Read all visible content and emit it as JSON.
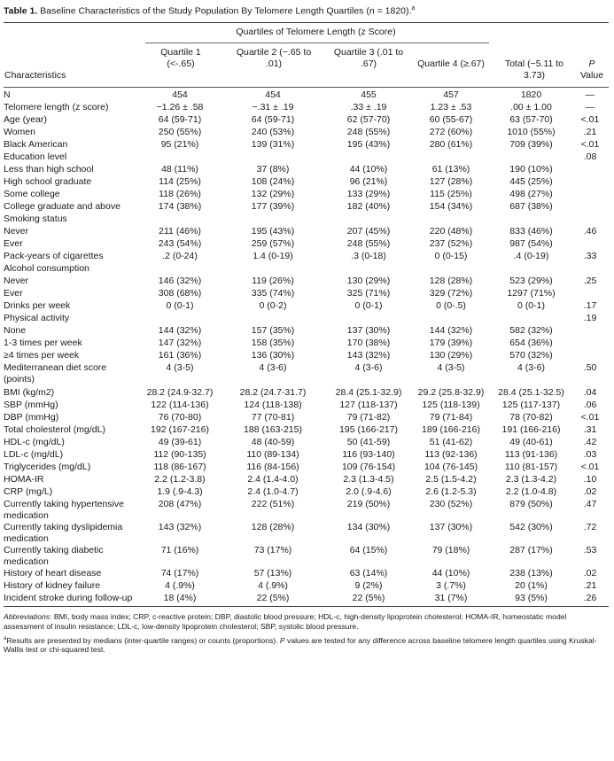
{
  "title": {
    "label": "Table 1.",
    "text": "Baseline Characteristics of the Study Population By Telomere Length Quartiles (n = 1820).",
    "mark": "a"
  },
  "header": {
    "span_title": "Quartiles of Telomere Length (z Score)",
    "characteristics": "Characteristics",
    "q1": [
      "Quartile 1",
      "(<-.65)"
    ],
    "q2": [
      "Quartile 2 (−.65 to",
      ".01)"
    ],
    "q3": [
      "Quartile 3 (.01 to",
      ".67)"
    ],
    "q4": "Quartile 4 (≥.67)",
    "total": [
      "Total (−5.11 to",
      "3.73)"
    ],
    "p": [
      "P",
      "Value"
    ]
  },
  "rows": [
    {
      "label": "N",
      "indent": false,
      "q1": "454",
      "q2": "454",
      "q3": "455",
      "q4": "457",
      "total": "1820",
      "p": "—"
    },
    {
      "label": "Telomere length (z score)",
      "indent": false,
      "q1": "−1.26 ± .58",
      "q2": "−.31 ± .19",
      "q3": ".33 ± .19",
      "q4": "1.23 ± .53",
      "total": ".00 ± 1.00",
      "p": "—"
    },
    {
      "label": "Age (year)",
      "indent": false,
      "q1": "64 (59-71)",
      "q2": "64 (59-71)",
      "q3": "62 (57-70)",
      "q4": "60 (55-67)",
      "total": "63 (57-70)",
      "p": "<.01"
    },
    {
      "label": "Women",
      "indent": false,
      "q1": "250 (55%)",
      "q2": "240 (53%)",
      "q3": "248 (55%)",
      "q4": "272 (60%)",
      "total": "1010 (55%)",
      "p": ".21"
    },
    {
      "label": "Black American",
      "indent": false,
      "q1": "95 (21%)",
      "q2": "139 (31%)",
      "q3": "195 (43%)",
      "q4": "280 (61%)",
      "total": "709 (39%)",
      "p": "<.01"
    },
    {
      "label": "Education level",
      "indent": false,
      "q1": "",
      "q2": "",
      "q3": "",
      "q4": "",
      "total": "",
      "p": ".08"
    },
    {
      "label": "Less than high school",
      "indent": true,
      "q1": "48 (11%)",
      "q2": "37 (8%)",
      "q3": "44 (10%)",
      "q4": "61 (13%)",
      "total": "190 (10%)",
      "p": ""
    },
    {
      "label": "High school graduate",
      "indent": true,
      "q1": "114 (25%)",
      "q2": "108 (24%)",
      "q3": "96 (21%)",
      "q4": "127 (28%)",
      "total": "445 (25%)",
      "p": ""
    },
    {
      "label": "Some college",
      "indent": true,
      "q1": "118 (26%)",
      "q2": "132 (29%)",
      "q3": "133 (29%)",
      "q4": "115 (25%)",
      "total": "498 (27%)",
      "p": ""
    },
    {
      "label": "College graduate and above",
      "indent": true,
      "q1": "174 (38%)",
      "q2": "177 (39%)",
      "q3": "182 (40%)",
      "q4": "154 (34%)",
      "total": "687 (38%)",
      "p": ""
    },
    {
      "label": "Smoking status",
      "indent": false,
      "q1": "",
      "q2": "",
      "q3": "",
      "q4": "",
      "total": "",
      "p": ""
    },
    {
      "label": "Never",
      "indent": true,
      "q1": "211 (46%)",
      "q2": "195 (43%)",
      "q3": "207 (45%)",
      "q4": "220 (48%)",
      "total": "833 (46%)",
      "p": ".46"
    },
    {
      "label": "Ever",
      "indent": true,
      "q1": "243 (54%)",
      "q2": "259 (57%)",
      "q3": "248 (55%)",
      "q4": "237 (52%)",
      "total": "987 (54%)",
      "p": ""
    },
    {
      "label": "Pack-years of cigarettes",
      "indent": true,
      "q1": ".2 (0-24)",
      "q2": "1.4 (0-19)",
      "q3": ".3 (0-18)",
      "q4": "0 (0-15)",
      "total": ".4 (0-19)",
      "p": ".33"
    },
    {
      "label": "Alcohol consumption",
      "indent": false,
      "q1": "",
      "q2": "",
      "q3": "",
      "q4": "",
      "total": "",
      "p": ""
    },
    {
      "label": "Never",
      "indent": true,
      "q1": "146 (32%)",
      "q2": "119 (26%)",
      "q3": "130 (29%)",
      "q4": "128 (28%)",
      "total": "523 (29%)",
      "p": ".25"
    },
    {
      "label": "Ever",
      "indent": true,
      "q1": "308 (68%)",
      "q2": "335 (74%)",
      "q3": "325 (71%)",
      "q4": "329 (72%)",
      "total": "1297 (71%)",
      "p": ""
    },
    {
      "label": "Drinks per week",
      "indent": true,
      "q1": "0 (0-1)",
      "q2": "0 (0-2)",
      "q3": "0 (0-1)",
      "q4": "0 (0-.5)",
      "total": "0 (0-1)",
      "p": ".17"
    },
    {
      "label": "Physical activity",
      "indent": false,
      "q1": "",
      "q2": "",
      "q3": "",
      "q4": "",
      "total": "",
      "p": ".19"
    },
    {
      "label": "None",
      "indent": true,
      "q1": "144 (32%)",
      "q2": "157 (35%)",
      "q3": "137 (30%)",
      "q4": "144 (32%)",
      "total": "582 (32%)",
      "p": ""
    },
    {
      "label": "1-3 times per week",
      "indent": true,
      "q1": "147 (32%)",
      "q2": "158 (35%)",
      "q3": "170 (38%)",
      "q4": "179 (39%)",
      "total": "654 (36%)",
      "p": ""
    },
    {
      "label": "≥4 times per week",
      "indent": true,
      "q1": "161 (36%)",
      "q2": "136 (30%)",
      "q3": "143 (32%)",
      "q4": "130 (29%)",
      "total": "570 (32%)",
      "p": ""
    },
    {
      "label": "Mediterranean diet score (points)",
      "indent": false,
      "q1": "4 (3-5)",
      "q2": "4 (3-6)",
      "q3": "4 (3-6)",
      "q4": "4 (3-5)",
      "total": "4 (3-6)",
      "p": ".50"
    },
    {
      "label": "BMI (kg/m2)",
      "indent": false,
      "q1": "28.2 (24.9-32.7)",
      "q2": "28.2 (24.7-31.7)",
      "q3": "28.4 (25.1-32.9)",
      "q4": "29.2 (25.8-32.9)",
      "total": "28.4 (25.1-32.5)",
      "p": ".04"
    },
    {
      "label": "SBP (mmHg)",
      "indent": false,
      "q1": "122 (114-136)",
      "q2": "124 (118-138)",
      "q3": "127 (118-137)",
      "q4": "125 (118-139)",
      "total": "125 (117-137)",
      "p": ".06"
    },
    {
      "label": "DBP (mmHg)",
      "indent": false,
      "q1": "76 (70-80)",
      "q2": "77 (70-81)",
      "q3": "79 (71-82)",
      "q4": "79 (71-84)",
      "total": "78 (70-82)",
      "p": "<.01"
    },
    {
      "label": "Total cholesterol (mg/dL)",
      "indent": false,
      "q1": "192 (167-216)",
      "q2": "188 (163-215)",
      "q3": "195 (166-217)",
      "q4": "189 (166-216)",
      "total": "191 (166-216)",
      "p": ".31"
    },
    {
      "label": "HDL-c (mg/dL)",
      "indent": false,
      "q1": "49 (39-61)",
      "q2": "48 (40-59)",
      "q3": "50 (41-59)",
      "q4": "51 (41-62)",
      "total": "49 (40-61)",
      "p": ".42"
    },
    {
      "label": "LDL-c (mg/dL)",
      "indent": false,
      "q1": "112 (90-135)",
      "q2": "110 (89-134)",
      "q3": "116 (93-140)",
      "q4": "113 (92-136)",
      "total": "113 (91-136)",
      "p": ".03"
    },
    {
      "label": "Triglycerides (mg/dL)",
      "indent": false,
      "q1": "118 (86-167)",
      "q2": "116 (84-156)",
      "q3": "109 (76-154)",
      "q4": "104 (76-145)",
      "total": "110 (81-157)",
      "p": "<.01"
    },
    {
      "label": "HOMA-IR",
      "indent": false,
      "q1": "2.2 (1.2-3.8)",
      "q2": "2.4 (1.4-4.0)",
      "q3": "2.3 (1.3-4.5)",
      "q4": "2.5 (1.5-4.2)",
      "total": "2.3 (1.3-4.2)",
      "p": ".10"
    },
    {
      "label": "CRP (mg/L)",
      "indent": false,
      "q1": "1.9 (.9-4.3)",
      "q2": "2.4 (1.0-4.7)",
      "q3": "2.0 (.9-4.6)",
      "q4": "2.6 (1.2-5.3)",
      "total": "2.2 (1.0-4.8)",
      "p": ".02"
    },
    {
      "label": "Currently taking hypertensive medication",
      "indent": false,
      "q1": "208 (47%)",
      "q2": "222 (51%)",
      "q3": "219 (50%)",
      "q4": "230 (52%)",
      "total": "879 (50%)",
      "p": ".47"
    },
    {
      "label": "Currently taking dyslipidemia medication",
      "indent": false,
      "q1": "143 (32%)",
      "q2": "128 (28%)",
      "q3": "134 (30%)",
      "q4": "137 (30%)",
      "total": "542 (30%)",
      "p": ".72"
    },
    {
      "label": "Currently taking diabetic medication",
      "indent": false,
      "q1": "71 (16%)",
      "q2": "73 (17%)",
      "q3": "64 (15%)",
      "q4": "79 (18%)",
      "total": "287 (17%)",
      "p": ".53"
    },
    {
      "label": "History of heart disease",
      "indent": false,
      "q1": "74 (17%)",
      "q2": "57 (13%)",
      "q3": "63 (14%)",
      "q4": "44 (10%)",
      "total": "238 (13%)",
      "p": ".02"
    },
    {
      "label": "History of kidney failure",
      "indent": false,
      "q1": "4 (.9%)",
      "q2": "4 (.9%)",
      "q3": "9 (2%)",
      "q4": "3 (.7%)",
      "total": "20 (1%)",
      "p": ".21"
    },
    {
      "label": "Incident stroke during follow-up",
      "indent": false,
      "q1": "18 (4%)",
      "q2": "22 (5%)",
      "q3": "22 (5%)",
      "q4": "31 (7%)",
      "total": "93 (5%)",
      "p": ".26"
    }
  ],
  "footnotes": {
    "abbr_label": "Abbreviations",
    "abbr_text": ": BMI, body mass index; CRP, c-reactive protein; DBP, diastolic blood pressure; HDL-c, high-density lipoprotein cholesterol; HOMA-IR, homeostatic model assessment of insulin resistance; LDL-c, low-density lipoprotein cholesterol; SBP, systolic blood pressure.",
    "note_mark": "a",
    "note_text_1": "Results are presented by medians (inter-quartile ranges) or counts (proportions). ",
    "note_p": "P",
    "note_text_2": " values are tested for any difference across baseline telomere length quartiles using Kruskal-Wallis test or chi-squared test."
  }
}
